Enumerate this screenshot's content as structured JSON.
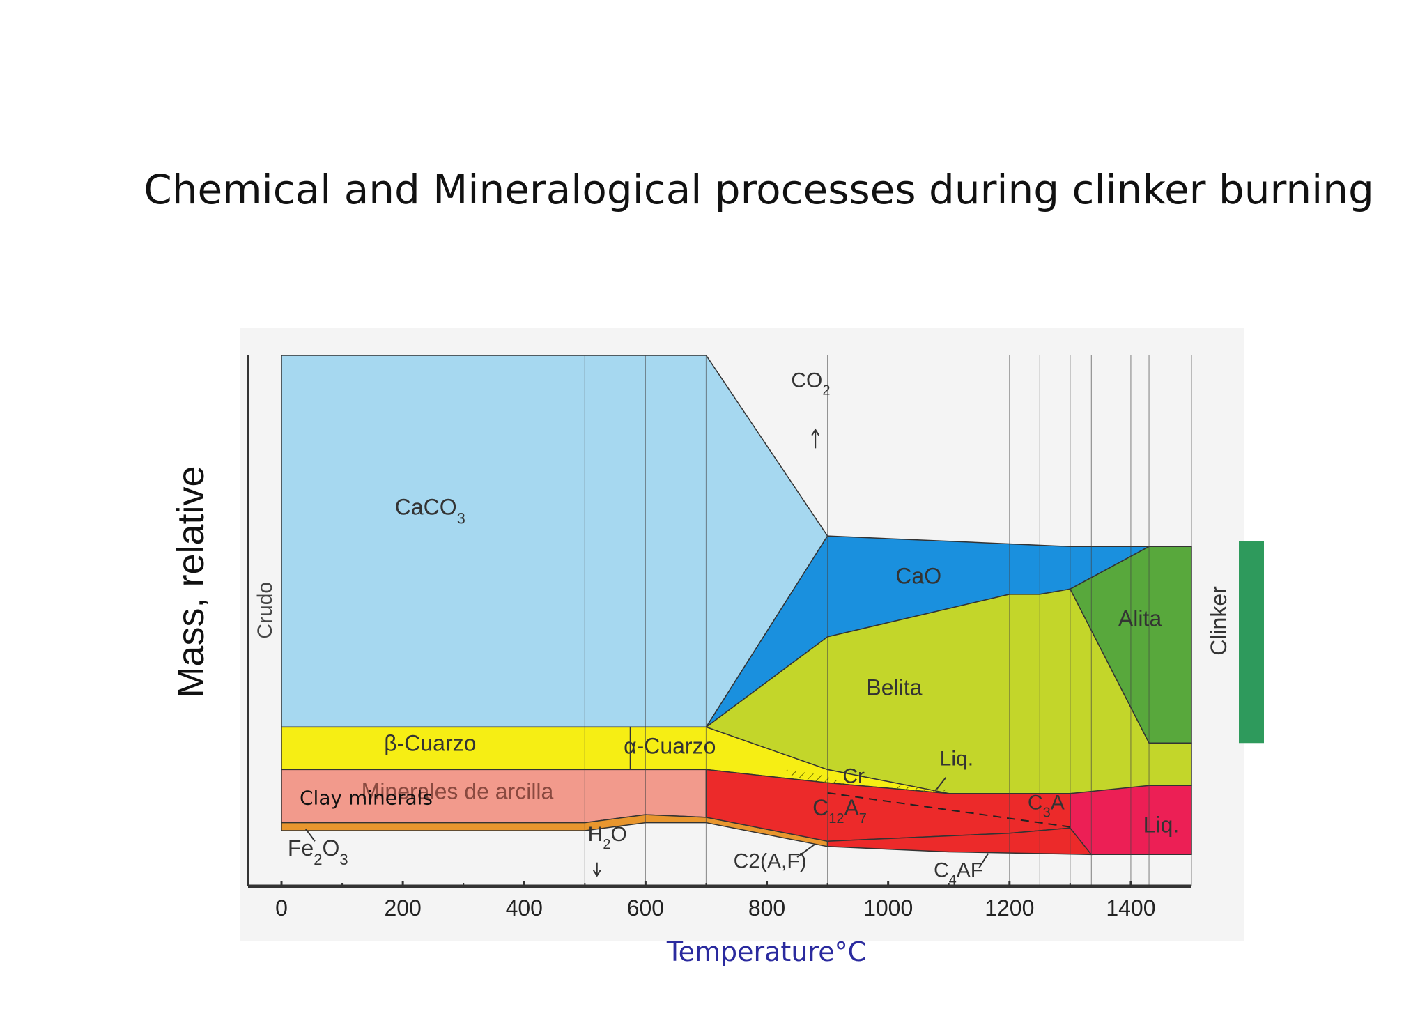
{
  "slide": {
    "title": "Chemical and Mineralogical processes during clinker burning",
    "x_caption": "Temperature°C",
    "overlay_label": "Clay minerals"
  },
  "colors": {
    "caco3": "#a6d8f0",
    "cao": "#1a90de",
    "belita": "#c3d62a",
    "alita": "#58a83c",
    "cuarzo": "#f6ee14",
    "arcilla": "#f29a8c",
    "fe2o3": "#e8962e",
    "melt_red": "#ec2a2a",
    "liq": "#ec1f55",
    "clinker_bar": "#2e9a5c"
  },
  "chart_data": {
    "type": "area",
    "x_axis": {
      "range": [
        0,
        1500
      ],
      "ticks": [
        0,
        200,
        400,
        600,
        800,
        1000,
        1200,
        1400
      ],
      "tick_labels": [
        "0",
        "200",
        "400",
        "600",
        "800",
        "1000",
        "1200",
        "1400"
      ]
    },
    "y_axis": {
      "label": "Mass, relative",
      "range": [
        0,
        100
      ]
    },
    "left_marker": "Crudo",
    "right_marker": "Clinker",
    "vertical_gridlines": [
      500,
      600,
      700,
      900,
      1200,
      1250,
      1300,
      1335,
      1400,
      1430,
      1500
    ],
    "phases": [
      {
        "name": "CaCO3",
        "label_html": "CaCO<tspan baseline-shift='sub' font-size='22'>3</tspan>",
        "color_key": "caco3",
        "points": [
          [
            0,
            100
          ],
          [
            700,
            100
          ],
          [
            900,
            66
          ],
          [
            700,
            30
          ],
          [
            0,
            30
          ]
        ]
      },
      {
        "name": "CaO",
        "label_html": "CaO",
        "color_key": "cao",
        "points": [
          [
            900,
            66
          ],
          [
            1300,
            64
          ],
          [
            1430,
            64
          ],
          [
            1300,
            56
          ],
          [
            1250,
            55
          ],
          [
            1200,
            55
          ],
          [
            900,
            47
          ],
          [
            700,
            30
          ]
        ]
      },
      {
        "name": "Belita",
        "label_html": "Belita",
        "color_key": "belita",
        "points": [
          [
            700,
            30
          ],
          [
            900,
            47
          ],
          [
            1200,
            55
          ],
          [
            1250,
            55
          ],
          [
            1300,
            56
          ],
          [
            1430,
            27
          ],
          [
            1500,
            27
          ],
          [
            1500,
            19
          ],
          [
            1300,
            17.5
          ],
          [
            1100,
            17.5
          ],
          [
            900,
            22
          ],
          [
            700,
            30
          ]
        ]
      },
      {
        "name": "Alita",
        "label_html": "Alita",
        "color_key": "alita",
        "points": [
          [
            1300,
            56
          ],
          [
            1430,
            64
          ],
          [
            1500,
            64
          ],
          [
            1500,
            27
          ],
          [
            1430,
            27
          ]
        ]
      },
      {
        "name": "β-Cuarzo",
        "label_html": "β-Cuarzo",
        "color_key": "cuarzo",
        "points": [
          [
            0,
            30
          ],
          [
            575,
            30
          ],
          [
            575,
            22
          ],
          [
            0,
            22
          ]
        ]
      },
      {
        "name": "α-Cuarzo",
        "label_html": "α-Cuarzo",
        "color_key": "cuarzo",
        "points": [
          [
            575,
            30
          ],
          [
            700,
            30
          ],
          [
            900,
            22
          ],
          [
            1100,
            17.5
          ],
          [
            900,
            19.5
          ],
          [
            700,
            22
          ],
          [
            575,
            22
          ]
        ]
      },
      {
        "name": "Minerales de arcilla",
        "label_html": "Minerales de arcilla",
        "color_key": "arcilla",
        "points": [
          [
            0,
            22
          ],
          [
            700,
            22
          ],
          [
            700,
            13
          ],
          [
            600,
            13.5
          ],
          [
            500,
            12
          ],
          [
            0,
            12
          ]
        ]
      },
      {
        "name": "Fe2O3",
        "label_html": "Fe<tspan baseline-shift='sub' font-size='22'>2</tspan>O<tspan baseline-shift='sub' font-size='22'>3</tspan>",
        "color_key": "fe2o3",
        "points": [
          [
            0,
            12
          ],
          [
            500,
            12
          ],
          [
            600,
            13.5
          ],
          [
            700,
            13
          ],
          [
            900,
            8.5
          ],
          [
            900,
            7.5
          ],
          [
            700,
            12
          ],
          [
            600,
            12
          ],
          [
            500,
            10.5
          ],
          [
            0,
            10.5
          ]
        ]
      },
      {
        "name": "C12A7",
        "label_html": "C<tspan baseline-shift='sub' font-size='20'>12</tspan>A<tspan baseline-shift='sub' font-size='20'>7</tspan>",
        "color_key": "melt_red",
        "points": [
          [
            700,
            22
          ],
          [
            900,
            19.5
          ],
          [
            1100,
            17.5
          ],
          [
            1300,
            17.5
          ],
          [
            1300,
            11
          ],
          [
            1200,
            10
          ],
          [
            900,
            8.5
          ],
          [
            700,
            13
          ]
        ]
      },
      {
        "name": "C4AF",
        "label_html": "C4AF",
        "color_key": "melt_red",
        "points": [
          [
            900,
            8.5
          ],
          [
            1200,
            10
          ],
          [
            1300,
            11
          ],
          [
            1335,
            6
          ],
          [
            1100,
            6.5
          ],
          [
            900,
            7.5
          ]
        ]
      },
      {
        "name": "Liq.",
        "label_html": "Liq.",
        "color_key": "liq",
        "points": [
          [
            1300,
            17.5
          ],
          [
            1430,
            19
          ],
          [
            1500,
            19
          ],
          [
            1500,
            6
          ],
          [
            1335,
            6
          ],
          [
            1300,
            11
          ]
        ]
      }
    ],
    "annotations": [
      {
        "text": "CO2",
        "x": 840,
        "y": 94,
        "html": "CO<tspan baseline-shift='sub' font-size='20'>2</tspan>"
      },
      {
        "text": "H2O",
        "x": 505,
        "y": 8.5,
        "html": "H<tspan baseline-shift='sub' font-size='20'>2</tspan>O"
      },
      {
        "text": "Cr",
        "x": 925,
        "y": 19.5
      },
      {
        "text": "Liq.",
        "x": 1085,
        "y": 22.8
      },
      {
        "text": "C3A",
        "x": 1230,
        "y": 14.5,
        "html": "C<tspan baseline-shift='sub' font-size='20'>3</tspan>A"
      },
      {
        "text": "C2(A,F)",
        "x": 745,
        "y": 3.5
      },
      {
        "text": "C4AF",
        "x": 1075,
        "y": 1.8,
        "html": "C<tspan baseline-shift='sub' font-size='20'>4</tspan>AF"
      }
    ]
  }
}
